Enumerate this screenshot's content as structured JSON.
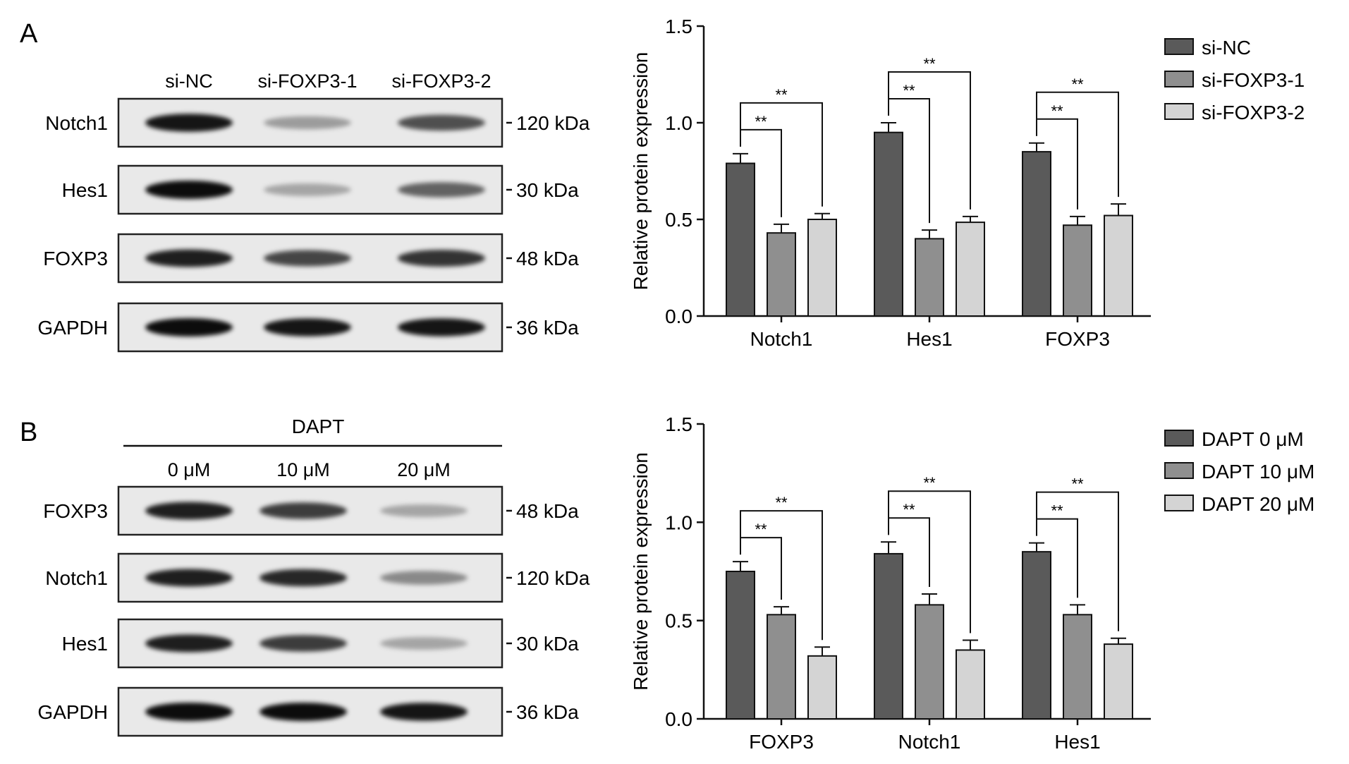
{
  "panels": [
    {
      "letter": "A",
      "blot": {
        "header": "",
        "lanes": [
          "si-NC",
          "si-FOXP3-1",
          "si-FOXP3-2"
        ],
        "bands": [
          {
            "protein": "Notch1",
            "size": "120 kDa",
            "intensities": [
              0.95,
              0.25,
              0.65
            ]
          },
          {
            "protein": "Hes1",
            "size": "30 kDa",
            "intensities": [
              1.0,
              0.2,
              0.55
            ]
          },
          {
            "protein": "FOXP3",
            "size": "48 kDa",
            "intensities": [
              0.9,
              0.7,
              0.8
            ]
          },
          {
            "protein": "GAPDH",
            "size": "36 kDa",
            "intensities": [
              1.0,
              0.95,
              0.95
            ]
          }
        ]
      }
    },
    {
      "letter": "B",
      "blot": {
        "header": "DAPT",
        "lanes": [
          "0 μM",
          "10 μM",
          "20 μM"
        ],
        "bands": [
          {
            "protein": "FOXP3",
            "size": "48 kDa",
            "intensities": [
              0.9,
              0.75,
              0.2
            ]
          },
          {
            "protein": "Notch1",
            "size": "120 kDa",
            "intensities": [
              0.9,
              0.85,
              0.35
            ]
          },
          {
            "protein": "Hes1",
            "size": "30 kDa",
            "intensities": [
              0.9,
              0.75,
              0.2
            ]
          },
          {
            "protein": "GAPDH",
            "size": "36 kDa",
            "intensities": [
              1.0,
              1.0,
              0.95
            ]
          }
        ]
      }
    }
  ],
  "chart_data": [
    {
      "type": "bar",
      "panel": "A",
      "ylabel": "Relative protein expression",
      "ylim": [
        0,
        1.5
      ],
      "yticks": [
        "0.0",
        "0.5",
        "1.0",
        "1.5"
      ],
      "categories": [
        "Notch1",
        "Hes1",
        "FOXP3"
      ],
      "series": [
        {
          "name": "si-NC",
          "color": "#5a5a5a",
          "values": [
            0.79,
            0.95,
            0.85
          ],
          "errors": [
            0.05,
            0.05,
            0.045
          ]
        },
        {
          "name": "si-FOXP3-1",
          "color": "#8f8f8f",
          "values": [
            0.43,
            0.4,
            0.47
          ],
          "errors": [
            0.045,
            0.045,
            0.045
          ]
        },
        {
          "name": "si-FOXP3-2",
          "color": "#d4d4d4",
          "values": [
            0.5,
            0.485,
            0.52
          ],
          "errors": [
            0.03,
            0.03,
            0.06
          ]
        }
      ],
      "significance": "**",
      "legend": "right"
    },
    {
      "type": "bar",
      "panel": "B",
      "ylabel": "Relative protein expression",
      "ylim": [
        0,
        1.5
      ],
      "yticks": [
        "0.0",
        "0.5",
        "1.0",
        "1.5"
      ],
      "categories": [
        "FOXP3",
        "Notch1",
        "Hes1"
      ],
      "series": [
        {
          "name": "DAPT 0 μM",
          "color": "#5a5a5a",
          "values": [
            0.75,
            0.84,
            0.85
          ],
          "errors": [
            0.05,
            0.06,
            0.045
          ]
        },
        {
          "name": "DAPT 10 μM",
          "color": "#8f8f8f",
          "values": [
            0.53,
            0.58,
            0.53
          ],
          "errors": [
            0.04,
            0.055,
            0.05
          ]
        },
        {
          "name": "DAPT 20 μM",
          "color": "#d4d4d4",
          "values": [
            0.32,
            0.35,
            0.38
          ],
          "errors": [
            0.045,
            0.05,
            0.03
          ]
        }
      ],
      "significance": "**",
      "legend": "right"
    }
  ]
}
